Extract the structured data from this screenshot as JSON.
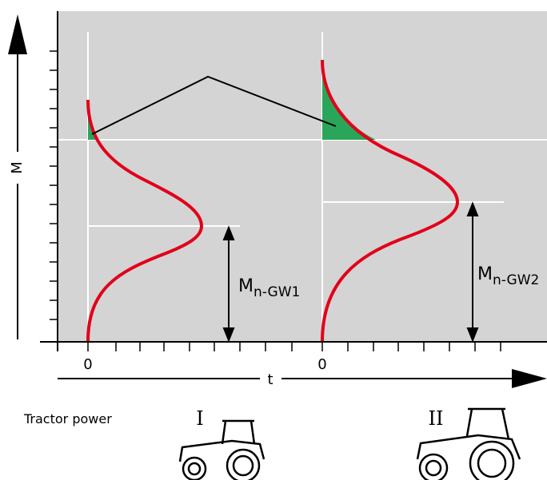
{
  "axes": {
    "y_label": "M",
    "x_label": "t"
  },
  "origins": [
    "0",
    "0"
  ],
  "limits": [
    {
      "symbol": "M",
      "subscript": "n-GW1"
    },
    {
      "symbol": "M",
      "subscript": "n-GW2"
    }
  ],
  "tractor": {
    "caption": "Tractor power",
    "classes": [
      "I",
      "II"
    ]
  }
}
